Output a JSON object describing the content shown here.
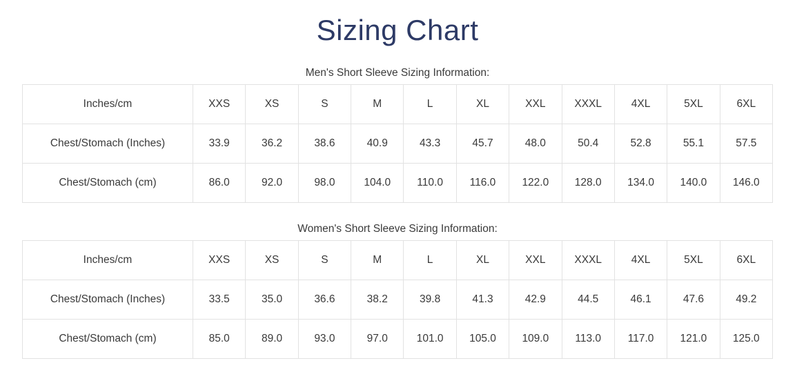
{
  "page": {
    "title": "Sizing Chart"
  },
  "colors": {
    "title": "#2d3a66",
    "text": "#3a3a3a",
    "border": "#e2e2e2",
    "background": "#ffffff"
  },
  "tables": [
    {
      "caption": "Men's Short Sleeve Sizing Information:",
      "header": [
        "Inches/cm",
        "XXS",
        "XS",
        "S",
        "M",
        "L",
        "XL",
        "XXL",
        "XXXL",
        "4XL",
        "5XL",
        "6XL"
      ],
      "rows": [
        [
          "Chest/Stomach (Inches)",
          "33.9",
          "36.2",
          "38.6",
          "40.9",
          "43.3",
          "45.7",
          "48.0",
          "50.4",
          "52.8",
          "55.1",
          "57.5"
        ],
        [
          "Chest/Stomach (cm)",
          "86.0",
          "92.0",
          "98.0",
          "104.0",
          "110.0",
          "116.0",
          "122.0",
          "128.0",
          "134.0",
          "140.0",
          "146.0"
        ]
      ]
    },
    {
      "caption": "Women's Short Sleeve Sizing Information:",
      "header": [
        "Inches/cm",
        "XXS",
        "XS",
        "S",
        "M",
        "L",
        "XL",
        "XXL",
        "XXXL",
        "4XL",
        "5XL",
        "6XL"
      ],
      "rows": [
        [
          "Chest/Stomach (Inches)",
          "33.5",
          "35.0",
          "36.6",
          "38.2",
          "39.8",
          "41.3",
          "42.9",
          "44.5",
          "46.1",
          "47.6",
          "49.2"
        ],
        [
          "Chest/Stomach (cm)",
          "85.0",
          "89.0",
          "93.0",
          "97.0",
          "101.0",
          "105.0",
          "109.0",
          "113.0",
          "117.0",
          "121.0",
          "125.0"
        ]
      ]
    }
  ]
}
